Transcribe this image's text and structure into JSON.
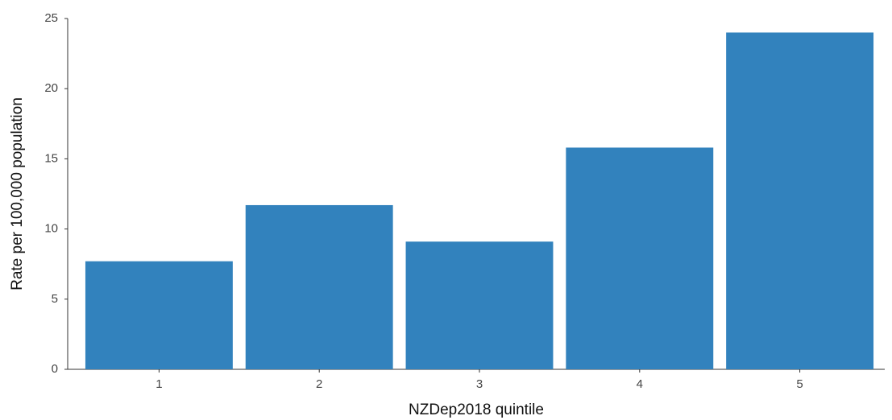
{
  "chart_data": {
    "type": "bar",
    "xlabel": "NZDep2018 quintile",
    "ylabel": "Rate per 100,000 population",
    "categories": [
      "1",
      "2",
      "3",
      "4",
      "5"
    ],
    "values": [
      7.7,
      11.7,
      9.1,
      15.8,
      24.0
    ],
    "color": "#3282bd",
    "ylim": [
      0,
      25
    ],
    "yticks": [
      0,
      5,
      10,
      15,
      20,
      25
    ],
    "grid": false
  }
}
